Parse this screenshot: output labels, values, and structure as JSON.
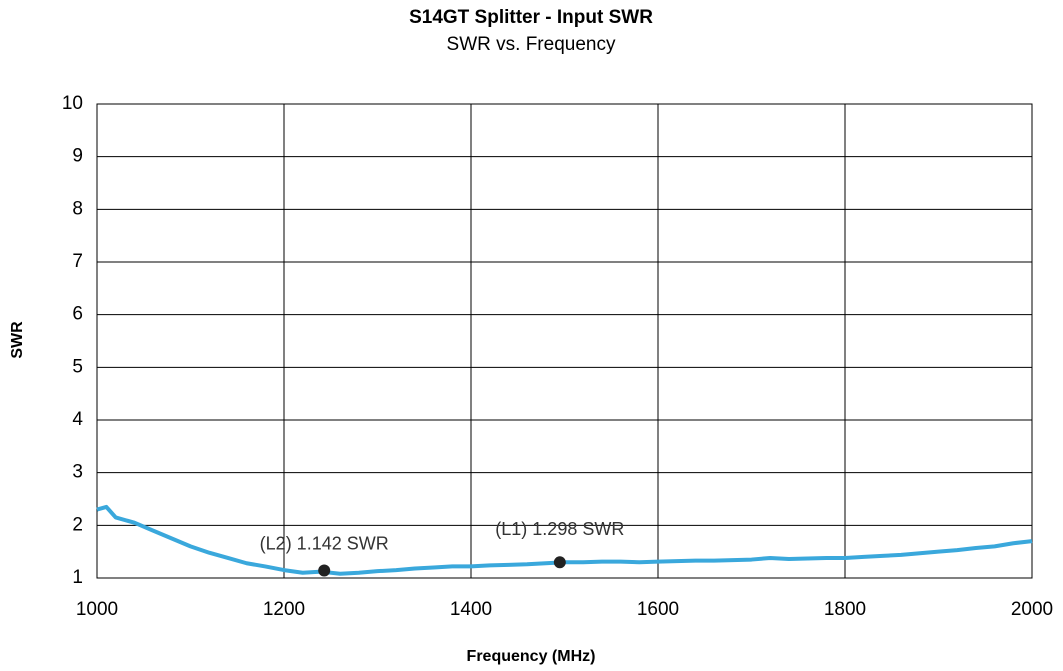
{
  "chart_data": {
    "type": "line",
    "title": "S14GT Splitter - Input SWR",
    "subtitle": "SWR vs. Frequency",
    "x_label": "Frequency (MHz)",
    "y_label": "SWR",
    "xlim": [
      1000,
      2000
    ],
    "xticks": [
      1000,
      1200,
      1400,
      1600,
      1800,
      2000
    ],
    "ylim": [
      1,
      10
    ],
    "yticks": [
      1,
      2,
      3,
      4,
      5,
      6,
      7,
      8,
      9,
      10
    ],
    "grid": true,
    "series": [
      {
        "name": "SWR",
        "color": "#3aa8dc",
        "x": [
          1000,
          1010,
          1020,
          1040,
          1060,
          1080,
          1100,
          1120,
          1140,
          1160,
          1180,
          1200,
          1220,
          1240,
          1260,
          1280,
          1300,
          1320,
          1340,
          1360,
          1380,
          1400,
          1420,
          1440,
          1460,
          1480,
          1500,
          1520,
          1540,
          1560,
          1580,
          1600,
          1620,
          1640,
          1660,
          1680,
          1700,
          1720,
          1740,
          1760,
          1780,
          1800,
          1820,
          1840,
          1860,
          1880,
          1900,
          1920,
          1940,
          1960,
          1980,
          2000
        ],
        "values": [
          2.3,
          2.35,
          2.15,
          2.05,
          1.9,
          1.75,
          1.6,
          1.48,
          1.38,
          1.28,
          1.22,
          1.15,
          1.1,
          1.12,
          1.08,
          1.1,
          1.13,
          1.15,
          1.18,
          1.2,
          1.22,
          1.22,
          1.24,
          1.25,
          1.26,
          1.28,
          1.3,
          1.3,
          1.31,
          1.31,
          1.3,
          1.31,
          1.32,
          1.33,
          1.33,
          1.34,
          1.35,
          1.38,
          1.36,
          1.37,
          1.38,
          1.38,
          1.4,
          1.42,
          1.44,
          1.47,
          1.5,
          1.53,
          1.57,
          1.6,
          1.66,
          1.7
        ]
      }
    ],
    "markers": [
      {
        "label": "(L2) 1.142 SWR",
        "x": 1243,
        "y": 1.142
      },
      {
        "label": "(L1) 1.298 SWR",
        "x": 1495,
        "y": 1.298
      }
    ]
  }
}
